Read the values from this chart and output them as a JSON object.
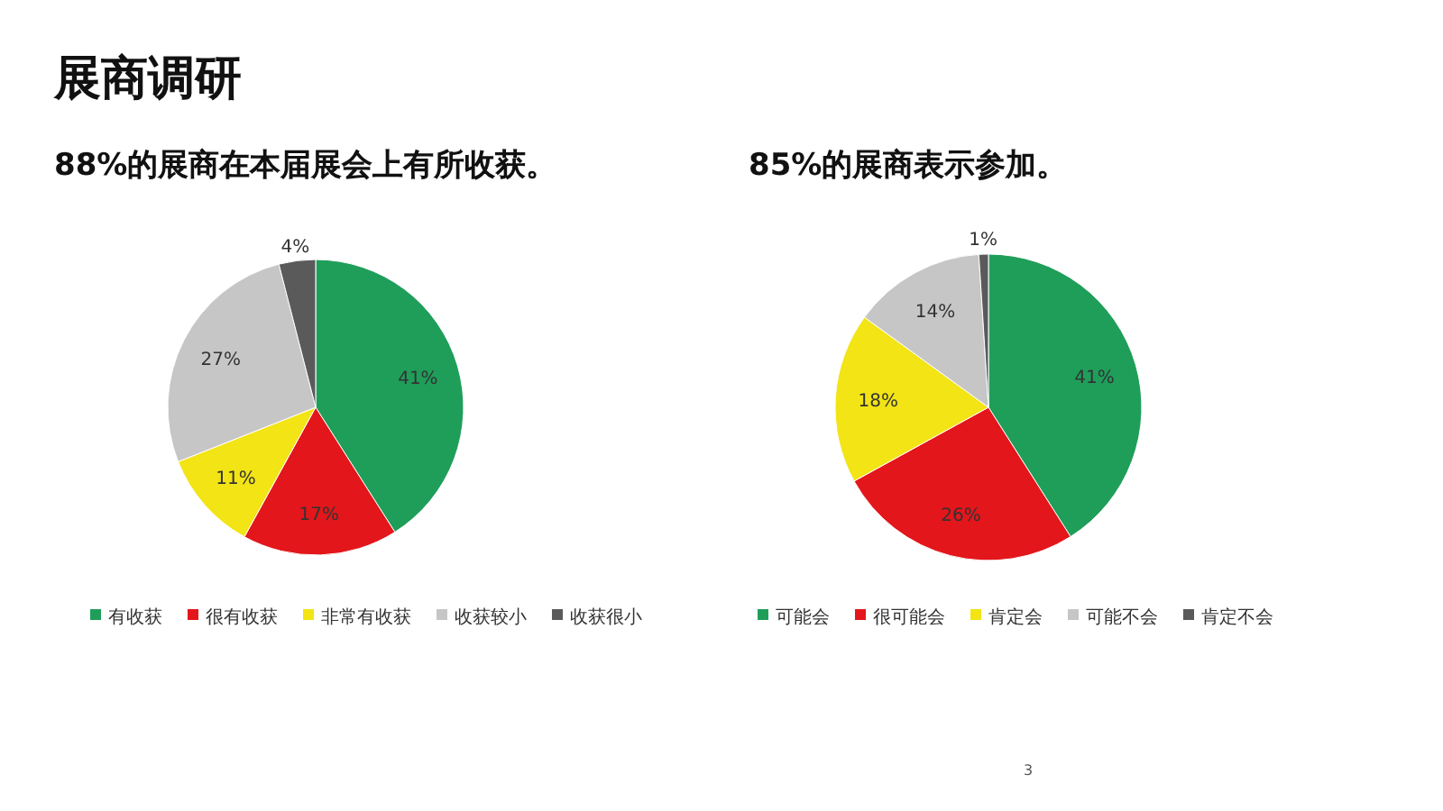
{
  "chart_data": [
    {
      "type": "pie",
      "title": "88%的展商在本届展会上有所收获。",
      "annotations": [
        "展商调研"
      ],
      "categories": [
        "有收获",
        "很有收获",
        "非常有收获",
        "收获较小",
        "收获很小"
      ],
      "values": [
        41,
        17,
        11,
        27,
        4
      ],
      "value_labels": [
        "41%",
        "17%",
        "11%",
        "27%",
        "4%"
      ],
      "colors": [
        "#1f9e5a",
        "#e3161b",
        "#f2e415",
        "#c6c6c6",
        "#5a5a5a"
      ],
      "legend": "bottom"
    },
    {
      "type": "pie",
      "title": "85%的展商表示参加。",
      "annotations": [
        "3"
      ],
      "categories": [
        "可能会",
        "很可能会",
        "肯定会",
        "可能不会",
        "肯定不会"
      ],
      "values": [
        41,
        26,
        18,
        14,
        1
      ],
      "value_labels": [
        "41%",
        "26%",
        "18%",
        "14%",
        "1%"
      ],
      "colors": [
        "#1f9e5a",
        "#e3161b",
        "#f2e415",
        "#c6c6c6",
        "#5a5a5a"
      ],
      "legend": "bottom"
    }
  ]
}
